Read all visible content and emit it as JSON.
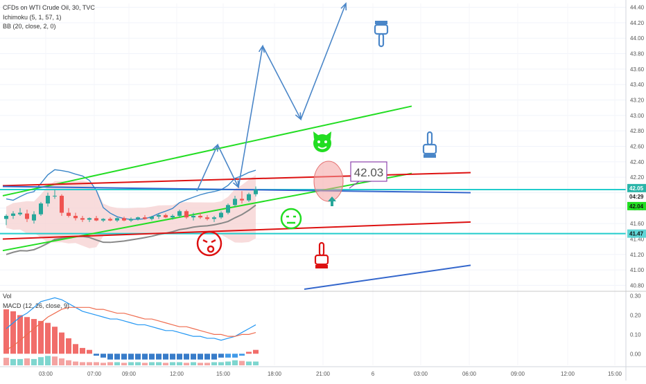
{
  "header": {
    "symbol_line": "CFDs on WTI Crude Oil, 30, TVC",
    "indicator_ichimoku": "Ichimoku (5, 1, 57, 1)",
    "indicator_bb": "BB (20, close, 2, 0)",
    "vol_label": "Vol",
    "macd_label": "MACD (12, 26, close, 9)"
  },
  "price_badges": {
    "last": "42.05",
    "countdown": "04:29",
    "green_level": "42.04",
    "support_level": "41.47"
  },
  "annotation_price": "42.03",
  "colors": {
    "bull": "#26a69a",
    "bear": "#ef5350",
    "green_line": "#22dd22",
    "red_line": "#dd1111",
    "cyan_line": "#22cccc",
    "arrow_blue": "#4a86c8",
    "bb_fill": "#f6d3d3"
  },
  "icons": [
    "devil-emoji-icon",
    "neutral-face-emoji-icon",
    "hurt-face-emoji-icon",
    "pointing-up-hand-icon",
    "pointing-down-hand-icon",
    "up-arrow-icon"
  ],
  "chart_data": [
    {
      "type": "candlestick",
      "title": "CFDs on WTI Crude Oil, 30, TVC",
      "y_ticks": [
        "44.40",
        "44.20",
        "44.00",
        "43.80",
        "43.60",
        "43.40",
        "43.20",
        "43.00",
        "42.80",
        "42.60",
        "42.40",
        "42.20",
        "42.00",
        "41.80",
        "41.60",
        "41.40",
        "41.20",
        "41.00",
        "40.80"
      ],
      "ylim": [
        40.75,
        44.45
      ],
      "x_ticks": [
        "03:00",
        "07:00",
        "09:00",
        "12:00",
        "15:00",
        "18:00",
        "21:00",
        "6",
        "03:00",
        "06:00",
        "09:00",
        "12:00",
        "15:00"
      ],
      "candles": [
        {
          "o": 41.66,
          "h": 41.72,
          "l": 41.58,
          "c": 41.7
        },
        {
          "o": 41.7,
          "h": 41.76,
          "l": 41.66,
          "c": 41.73
        },
        {
          "o": 41.72,
          "h": 41.8,
          "l": 41.7,
          "c": 41.74
        },
        {
          "o": 41.73,
          "h": 41.78,
          "l": 41.62,
          "c": 41.66
        },
        {
          "o": 41.64,
          "h": 41.76,
          "l": 41.6,
          "c": 41.72
        },
        {
          "o": 41.72,
          "h": 41.88,
          "l": 41.7,
          "c": 41.86
        },
        {
          "o": 41.86,
          "h": 42.0,
          "l": 41.82,
          "c": 41.96
        },
        {
          "o": 41.96,
          "h": 42.04,
          "l": 41.92,
          "c": 41.96
        },
        {
          "o": 41.96,
          "h": 41.98,
          "l": 41.7,
          "c": 41.74
        },
        {
          "o": 41.74,
          "h": 41.8,
          "l": 41.68,
          "c": 41.7
        },
        {
          "o": 41.7,
          "h": 41.74,
          "l": 41.64,
          "c": 41.67
        },
        {
          "o": 41.67,
          "h": 41.7,
          "l": 41.62,
          "c": 41.65
        },
        {
          "o": 41.65,
          "h": 41.68,
          "l": 41.62,
          "c": 41.67
        },
        {
          "o": 41.67,
          "h": 41.7,
          "l": 41.63,
          "c": 41.64
        },
        {
          "o": 41.64,
          "h": 41.67,
          "l": 41.62,
          "c": 41.66
        },
        {
          "o": 41.66,
          "h": 41.68,
          "l": 41.63,
          "c": 41.64
        },
        {
          "o": 41.64,
          "h": 41.68,
          "l": 41.62,
          "c": 41.67
        },
        {
          "o": 41.67,
          "h": 41.69,
          "l": 41.63,
          "c": 41.64
        },
        {
          "o": 41.64,
          "h": 41.68,
          "l": 41.62,
          "c": 41.66
        },
        {
          "o": 41.66,
          "h": 41.69,
          "l": 41.64,
          "c": 41.68
        },
        {
          "o": 41.68,
          "h": 41.71,
          "l": 41.65,
          "c": 41.66
        },
        {
          "o": 41.66,
          "h": 41.7,
          "l": 41.64,
          "c": 41.69
        },
        {
          "o": 41.69,
          "h": 41.73,
          "l": 41.66,
          "c": 41.71
        },
        {
          "o": 41.71,
          "h": 41.73,
          "l": 41.67,
          "c": 41.68
        },
        {
          "o": 41.68,
          "h": 41.72,
          "l": 41.65,
          "c": 41.7
        },
        {
          "o": 41.7,
          "h": 41.78,
          "l": 41.68,
          "c": 41.76
        },
        {
          "o": 41.76,
          "h": 41.78,
          "l": 41.66,
          "c": 41.68
        },
        {
          "o": 41.68,
          "h": 41.74,
          "l": 41.64,
          "c": 41.7
        },
        {
          "o": 41.7,
          "h": 41.74,
          "l": 41.66,
          "c": 41.68
        },
        {
          "o": 41.68,
          "h": 41.71,
          "l": 41.64,
          "c": 41.66
        },
        {
          "o": 41.66,
          "h": 41.7,
          "l": 41.62,
          "c": 41.68
        },
        {
          "o": 41.68,
          "h": 41.76,
          "l": 41.66,
          "c": 41.74
        },
        {
          "o": 41.74,
          "h": 41.86,
          "l": 41.72,
          "c": 41.84
        },
        {
          "o": 41.84,
          "h": 41.96,
          "l": 41.82,
          "c": 41.92
        },
        {
          "o": 41.92,
          "h": 42.02,
          "l": 41.86,
          "c": 41.9
        },
        {
          "o": 41.9,
          "h": 42.0,
          "l": 41.88,
          "c": 41.98
        },
        {
          "o": 41.98,
          "h": 42.08,
          "l": 41.95,
          "c": 42.04
        }
      ],
      "lines": [
        {
          "name": "upper-green",
          "color": "#22dd22",
          "points": [
            [
              -0.5,
              41.96
            ],
            [
              58.5,
              43.12
            ]
          ]
        },
        {
          "name": "lower-green",
          "color": "#22dd22",
          "points": [
            [
              -0.5,
              41.25
            ],
            [
              58.5,
              42.25
            ]
          ]
        },
        {
          "name": "upper-red",
          "color": "#dd1111",
          "points": [
            [
              -0.5,
              42.09
            ],
            [
              67,
              42.26
            ]
          ]
        },
        {
          "name": "lower-red",
          "color": "#dd1111",
          "points": [
            [
              -0.5,
              41.4
            ],
            [
              67,
              41.62
            ]
          ]
        },
        {
          "name": "long-blue",
          "color": "#3366cc",
          "points": [
            [
              -0.5,
              42.08
            ],
            [
              67,
              42.0
            ]
          ]
        },
        {
          "name": "bottom-blue",
          "color": "#3366cc",
          "points": [
            [
              43,
              40.75
            ],
            [
              67,
              41.06
            ]
          ]
        }
      ],
      "horizontal_levels": [
        {
          "value": 42.04,
          "color": "#22cccc"
        },
        {
          "value": 41.47,
          "color": "#22cccc"
        }
      ],
      "projection_path": [
        [
          27.5,
          42.02
        ],
        [
          30.5,
          42.62
        ],
        [
          33.5,
          42.07
        ],
        [
          37,
          43.9
        ],
        [
          42.5,
          42.95
        ],
        [
          49,
          44.45
        ]
      ]
    },
    {
      "type": "bar",
      "title": "Vol",
      "values_up": [
        0,
        1,
        1,
        0,
        1,
        1,
        1,
        0,
        0,
        0,
        0,
        0,
        0,
        0,
        0,
        0,
        1,
        0,
        1,
        1,
        0,
        1,
        1,
        0,
        1,
        1,
        0,
        1,
        0,
        0,
        1,
        1,
        1,
        1,
        0,
        1,
        1
      ],
      "vol_heights": [
        0.12,
        0.1,
        0.1,
        0.11,
        0.1,
        0.13,
        0.15,
        0.14,
        0.11,
        0.08,
        0.06,
        0.05,
        0.05,
        0.05,
        0.04,
        0.05,
        0.05,
        0.04,
        0.05,
        0.05,
        0.04,
        0.05,
        0.05,
        0.04,
        0.05,
        0.05,
        0.04,
        0.05,
        0.04,
        0.04,
        0.05,
        0.05,
        0.06,
        0.08,
        0.07,
        0.06,
        0.06
      ]
    },
    {
      "type": "line",
      "title": "MACD (12, 26, close, 9)",
      "y_ticks": [
        "0.30",
        "0.20",
        "0.10",
        "0.00"
      ],
      "ylim": [
        -0.06,
        0.32
      ],
      "histogram": [
        0.23,
        0.22,
        0.2,
        0.19,
        0.18,
        0.17,
        0.16,
        0.14,
        0.11,
        0.08,
        0.05,
        0.03,
        0.02,
        -0.01,
        -0.02,
        -0.03,
        -0.03,
        -0.03,
        -0.03,
        -0.03,
        -0.03,
        -0.03,
        -0.03,
        -0.03,
        -0.03,
        -0.03,
        -0.03,
        -0.03,
        -0.03,
        -0.03,
        -0.03,
        -0.02,
        -0.02,
        -0.02,
        -0.01,
        0.01,
        0.02
      ],
      "macd": [
        0.13,
        0.16,
        0.19,
        0.21,
        0.24,
        0.27,
        0.28,
        0.29,
        0.28,
        0.26,
        0.24,
        0.22,
        0.21,
        0.2,
        0.19,
        0.18,
        0.18,
        0.17,
        0.16,
        0.15,
        0.15,
        0.14,
        0.13,
        0.12,
        0.12,
        0.11,
        0.1,
        0.09,
        0.09,
        0.08,
        0.08,
        0.07,
        0.08,
        0.09,
        0.11,
        0.13,
        0.15
      ],
      "signal": [
        0.02,
        0.04,
        0.07,
        0.1,
        0.13,
        0.16,
        0.19,
        0.21,
        0.23,
        0.24,
        0.24,
        0.24,
        0.24,
        0.23,
        0.23,
        0.22,
        0.21,
        0.21,
        0.2,
        0.19,
        0.18,
        0.18,
        0.17,
        0.16,
        0.15,
        0.14,
        0.14,
        0.13,
        0.12,
        0.11,
        0.1,
        0.1,
        0.09,
        0.09,
        0.1,
        0.1,
        0.11
      ]
    }
  ]
}
